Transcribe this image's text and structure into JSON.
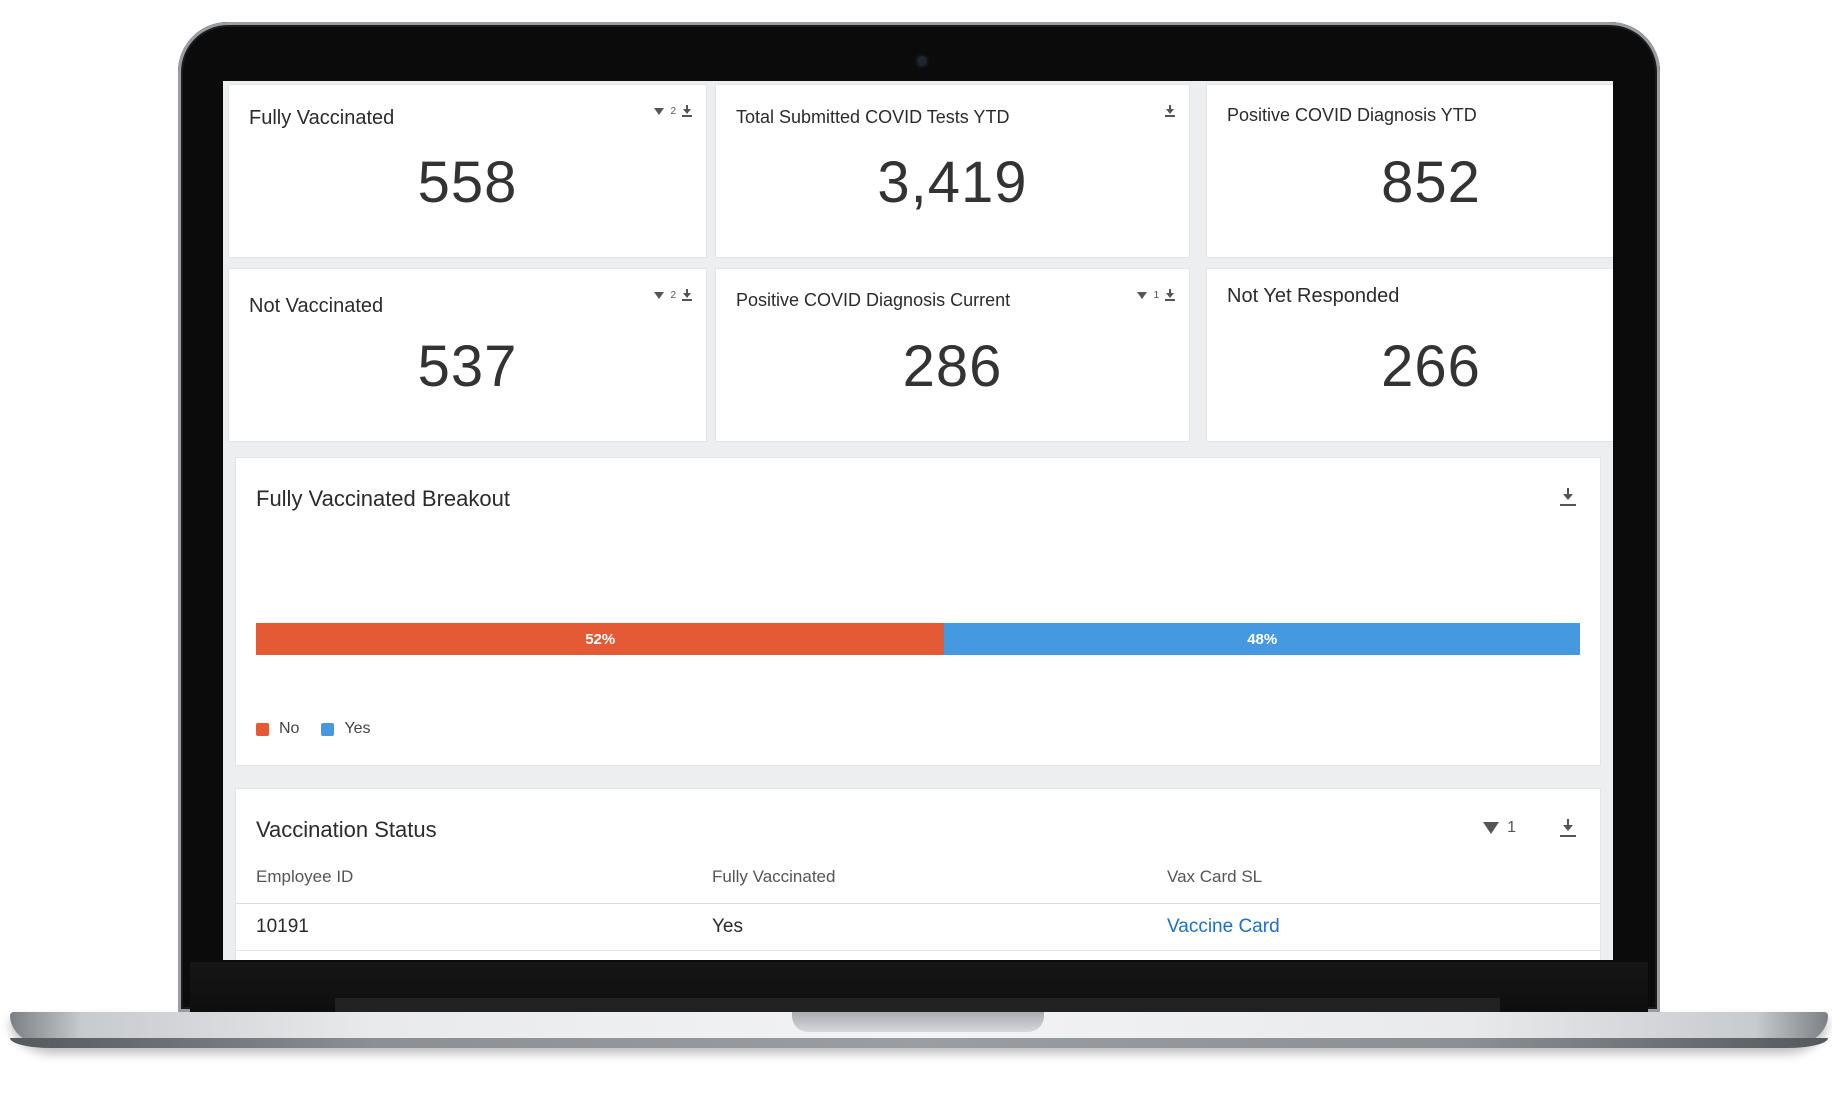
{
  "kpis": {
    "fully_vaccinated": {
      "title": "Fully Vaccinated",
      "value": "558",
      "filter_count": "2"
    },
    "total_tests": {
      "title": "Total Submitted COVID Tests YTD",
      "value": "3,419"
    },
    "positive_ytd": {
      "title": "Positive COVID Diagnosis YTD",
      "value": "852"
    },
    "not_vaccinated": {
      "title": "Not Vaccinated",
      "value": "537",
      "filter_count": "2"
    },
    "positive_current": {
      "title": "Positive COVID Diagnosis Current",
      "value": "286",
      "filter_count": "1"
    },
    "not_responded": {
      "title": "Not Yet Responded",
      "value": "266"
    }
  },
  "breakout": {
    "title": "Fully Vaccinated Breakout",
    "segments": [
      {
        "label": "No",
        "percent_label": "52%",
        "share": 0.52,
        "color": "#e35a35"
      },
      {
        "label": "Yes",
        "percent_label": "48%",
        "share": 0.48,
        "color": "#4499e0"
      }
    ]
  },
  "vaccination_status": {
    "title": "Vaccination Status",
    "filter_count": "1",
    "columns": [
      "Employee ID",
      "Fully Vaccinated",
      "Vax Card SL"
    ],
    "rows": [
      {
        "employee_id": "10191",
        "fully_vaccinated": "Yes",
        "vax_card": "Vaccine Card"
      }
    ]
  },
  "colors": {
    "no": "#e35a35",
    "yes": "#4499e0",
    "link": "#1f6fc8"
  },
  "chart_data": {
    "type": "bar",
    "title": "Fully Vaccinated Breakout",
    "categories": [
      "No",
      "Yes"
    ],
    "values": [
      52,
      48
    ],
    "unit": "%",
    "stacked": true,
    "legend": "bottom-left"
  }
}
